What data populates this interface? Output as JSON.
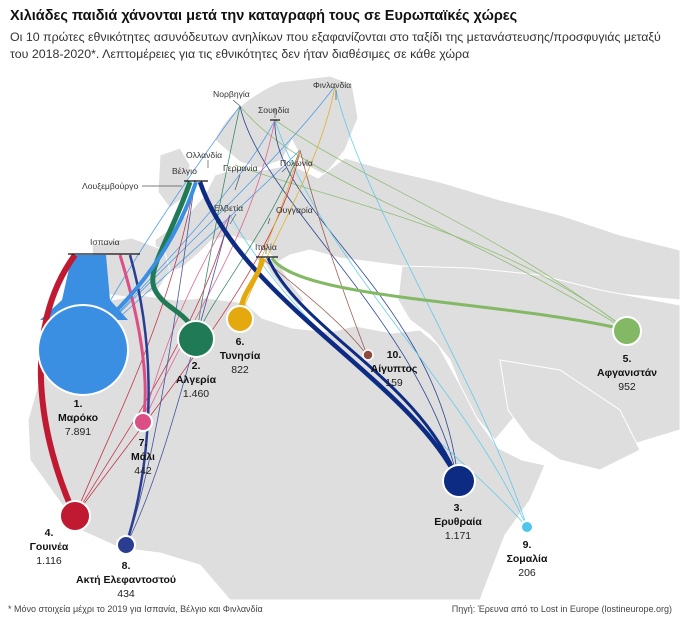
{
  "title": "Χιλιάδες παιδιά χάνονται μετά την καταγραφή τους σε Ευρωπαϊκές χώρες",
  "subtitle": "Οι 10 πρώτες εθνικότητες ασυνόδευτων ανηλίκων που εξαφανίζονται στο ταξίδι της μετανάστευσης/προσφυγιάς μεταξύ του 2018-2020*. Λεπτομέρειες για τις εθνικότητες δεν ήταν διαθέσιμες σε κάθε χώρα",
  "footnote": "* Μόνο στοιχεία μέχρι το 2019 για Ισπανία, Βέλγιο και Φινλανδία",
  "source": "Πηγή: Έρευνα από το Lost in Europe (lostineurope.org)",
  "countries": {
    "norway": "Νορβηγία",
    "finland": "Φινλανδία",
    "sweden": "Σουηδία",
    "netherlands": "Ολλανδία",
    "belgium": "Βέλγιο",
    "germany": "Γερμανία",
    "poland": "Πολωνία",
    "luxembourg": "Λουξεμβούργο",
    "switzerland": "Ελβετία",
    "hungary": "Ουγγαρία",
    "spain": "Ισπανία",
    "italy": "Ιταλία"
  },
  "nationalities": [
    {
      "rank": "1.",
      "name": "Μαρόκο",
      "value": "7.891",
      "count": 7891,
      "color": "#3b8fe3"
    },
    {
      "rank": "2.",
      "name": "Αλγερία",
      "value": "1.460",
      "count": 1460,
      "color": "#1f7a55"
    },
    {
      "rank": "3.",
      "name": "Ερυθραία",
      "value": "1.171",
      "count": 1171,
      "color": "#0d2b82"
    },
    {
      "rank": "4.",
      "name": "Γουινέα",
      "value": "1.116",
      "count": 1116,
      "color": "#c01a33"
    },
    {
      "rank": "5.",
      "name": "Αφγανιστάν",
      "value": "952",
      "count": 952,
      "color": "#83b864"
    },
    {
      "rank": "6.",
      "name": "Τυνησία",
      "value": "822",
      "count": 822,
      "color": "#e3a90f"
    },
    {
      "rank": "7.",
      "name": "Μάλι",
      "value": "442",
      "count": 442,
      "color": "#db4f86"
    },
    {
      "rank": "8.",
      "name": "Ακτή Ελεφαντοστού",
      "value": "434",
      "count": 434,
      "color": "#2a3d91"
    },
    {
      "rank": "9.",
      "name": "Σομαλία",
      "value": "206",
      "count": 206,
      "color": "#4ec6ec"
    },
    {
      "rank": "10.",
      "name": "Αίγυπτος",
      "value": "159",
      "count": 159,
      "color": "#8e4a3f"
    }
  ]
}
